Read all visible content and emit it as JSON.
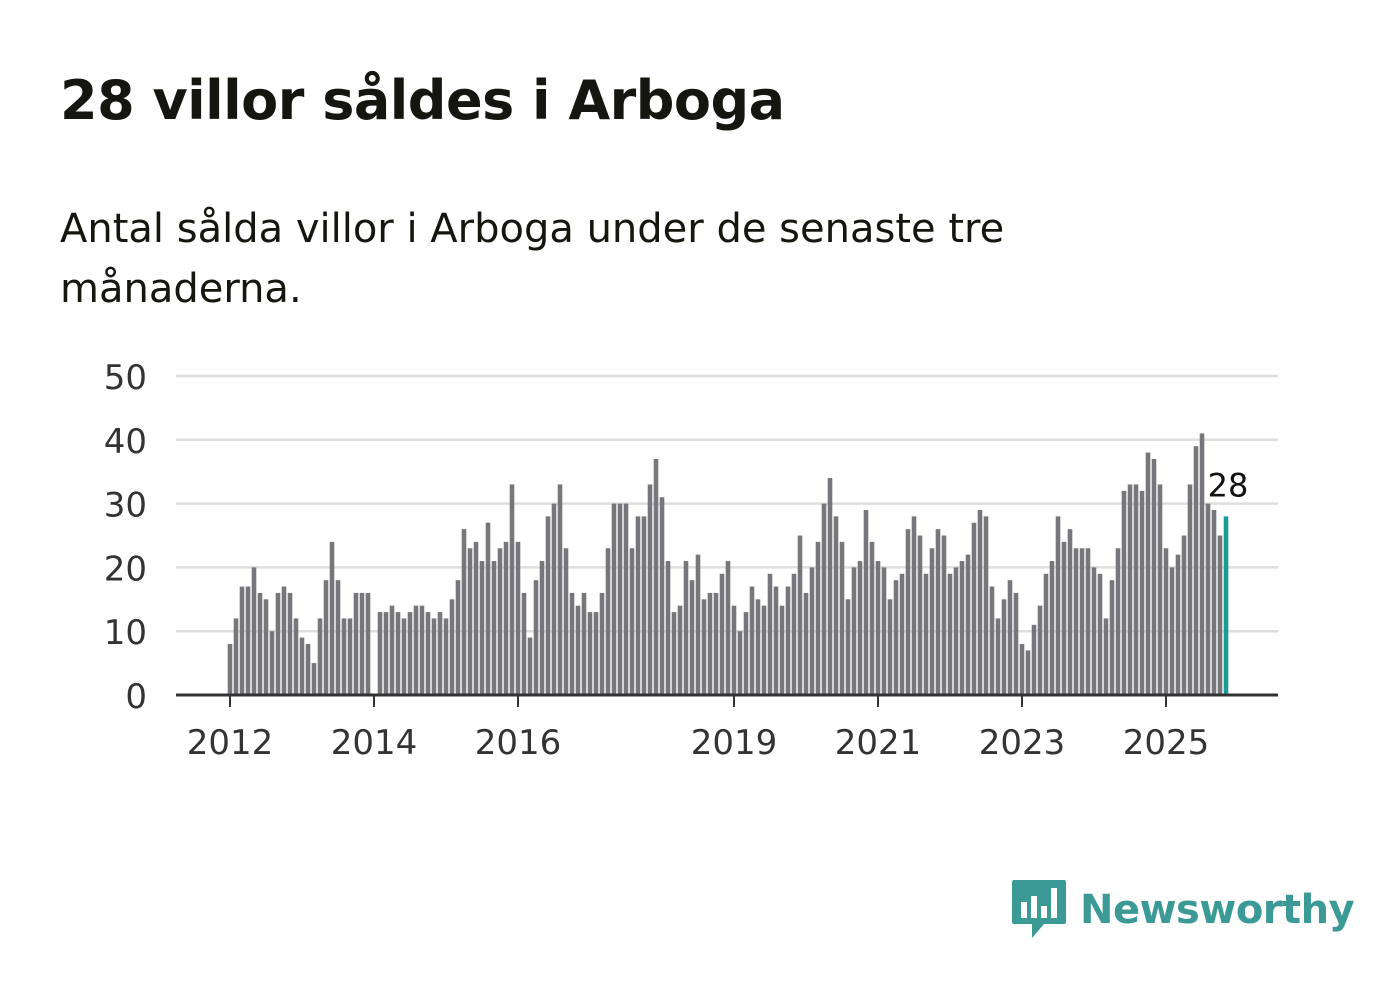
{
  "title": "28 villor såldes i Arboga",
  "subtitle": "Antal sålda villor i Arboga under de senaste tre månaderna.",
  "brand": {
    "name": "Newsworthy",
    "color": "#3c9a96",
    "icon": "newsworthy-logo-icon"
  },
  "colors": {
    "bar": "#77767b",
    "highlight": "#1a9b96",
    "grid": "#dedede",
    "axis": "#333333",
    "text": "#333333"
  },
  "chart_data": {
    "type": "bar",
    "title": "",
    "xlabel": "",
    "ylabel": "",
    "ylim": [
      0,
      50
    ],
    "yticks": [
      0,
      10,
      20,
      30,
      40,
      50
    ],
    "grid": true,
    "x_tick_labels": [
      "2012",
      "2014",
      "2016",
      "2019",
      "2021",
      "2023",
      "2025"
    ],
    "x_tick_positions": [
      0,
      24,
      48,
      84,
      108,
      132,
      156
    ],
    "annotation": {
      "label": "28",
      "index": 166
    },
    "values": [
      8,
      12,
      17,
      17,
      20,
      16,
      15,
      10,
      16,
      17,
      16,
      12,
      9,
      8,
      5,
      12,
      18,
      24,
      18,
      12,
      12,
      16,
      16,
      16,
      null,
      13,
      13,
      14,
      13,
      12,
      13,
      14,
      14,
      13,
      12,
      13,
      12,
      15,
      18,
      26,
      23,
      24,
      21,
      27,
      21,
      23,
      24,
      33,
      24,
      16,
      9,
      18,
      21,
      28,
      30,
      33,
      23,
      16,
      14,
      16,
      13,
      13,
      16,
      23,
      30,
      30,
      30,
      23,
      28,
      28,
      33,
      37,
      31,
      21,
      13,
      14,
      21,
      18,
      22,
      15,
      16,
      16,
      19,
      21,
      14,
      10,
      13,
      17,
      15,
      14,
      19,
      17,
      14,
      17,
      19,
      25,
      16,
      20,
      24,
      30,
      34,
      28,
      24,
      15,
      20,
      21,
      29,
      24,
      21,
      20,
      15,
      18,
      19,
      26,
      28,
      25,
      19,
      23,
      26,
      25,
      19,
      20,
      21,
      22,
      27,
      29,
      28,
      17,
      12,
      15,
      18,
      16,
      8,
      7,
      11,
      14,
      19,
      21,
      28,
      24,
      26,
      23,
      23,
      23,
      20,
      19,
      12,
      18,
      23,
      32,
      33,
      33,
      32,
      38,
      37,
      33,
      23,
      20,
      22,
      25,
      33,
      39,
      41,
      30,
      29,
      25,
      28
    ]
  }
}
